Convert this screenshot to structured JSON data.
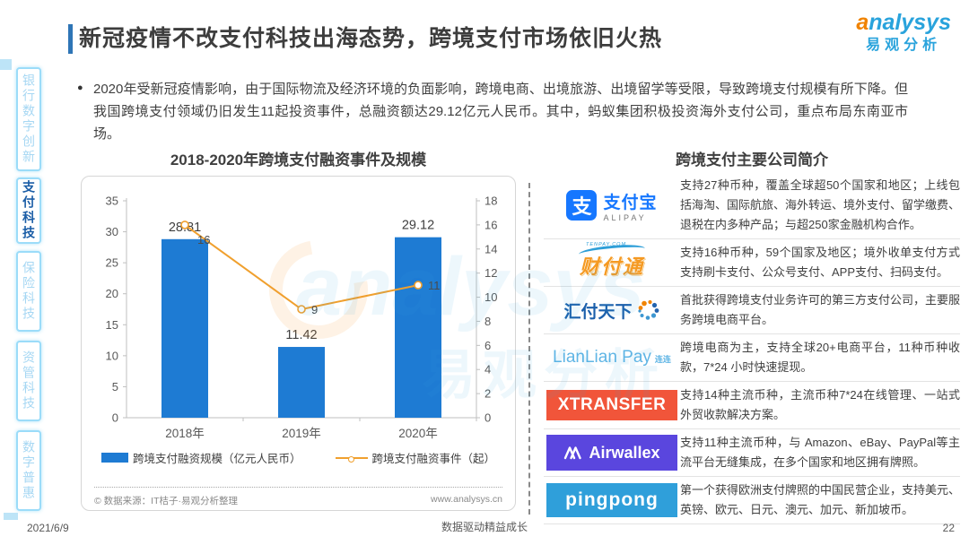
{
  "page": {
    "title": "新冠疫情不改支付科技出海态势，跨境支付市场依旧火热",
    "brand": {
      "en_a": "a",
      "en_rest": "nalysys",
      "cn": "易观分析"
    },
    "watermark": {
      "en": "analysys",
      "cn": "易观分析"
    },
    "footer": {
      "date": "2021/6/9",
      "slogan": "数据驱动精益成长",
      "page_number": "22"
    }
  },
  "sidebar": {
    "items": [
      {
        "label": "银行数字创新",
        "active": false
      },
      {
        "label": "支付科技",
        "active": true
      },
      {
        "label": "保险科技",
        "active": false
      },
      {
        "label": "资管科技",
        "active": false
      },
      {
        "label": "数字普惠",
        "active": false
      }
    ]
  },
  "bullet": {
    "marker": "●",
    "text": "2020年受新冠疫情影响，由于国际物流及经济环境的负面影响，跨境电商、出境旅游、出境留学等受限，导致跨境支付规模有所下降。但我国跨境支付领域仍旧发生11起投资事件，总融资额达29.12亿元人民币。其中，蚂蚁集团积极投资海外支付公司，重点布局东南亚市场。"
  },
  "chart_data": {
    "type": "bar",
    "title": "2018-2020年跨境支付融资事件及规模",
    "categories": [
      "2018年",
      "2019年",
      "2020年"
    ],
    "series": [
      {
        "name": "跨境支付融资规模（亿元人民币）",
        "type": "bar",
        "values": [
          28.81,
          11.42,
          29.12
        ]
      },
      {
        "name": "跨境支付融资事件（起）",
        "type": "line",
        "values": [
          16,
          9,
          11
        ]
      }
    ],
    "left_axis": {
      "min": 0,
      "max": 35,
      "step": 5
    },
    "right_axis": {
      "min": 0,
      "max": 18,
      "step": 2
    },
    "grid": false,
    "legend_position": "bottom",
    "source_note": "© 数据来源：IT桔子·易观分析整理",
    "website": "www.analysys.cn"
  },
  "colors": {
    "bar": "#1E7BD3",
    "line": "#F0A02E",
    "accent": "#2E75B6",
    "brand_blue": "#29A3DC",
    "brand_orange": "#F08300",
    "axis_text": "#595959",
    "label_text": "#3F3F3F"
  },
  "companies": {
    "title": "跨境支付主要公司简介",
    "rows": [
      {
        "name": "支付宝",
        "logo_glyph": "支",
        "logo_cn": "支付宝",
        "logo_en": "ALIPAY",
        "desc": "支持27种币种，覆盖全球超50个国家和地区；上线包括海淘、国际航旅、海外转运、境外支付、留学缴费、退税在内多种产品；与超250家金融机构合作。"
      },
      {
        "name": "财付通",
        "logo_top": "TENPAY.COM",
        "logo_text": "财付通",
        "desc": "支持16种币种，59个国家及地区；境外收单支付方式支持刷卡支付、公众号支付、APP支付、扫码支付。"
      },
      {
        "name": "汇付天下",
        "logo_text": "汇付天下",
        "desc": "首批获得跨境支付业务许可的第三方支付公司，主要服务跨境电商平台。"
      },
      {
        "name": "连连支付",
        "logo_text": "LianLian Pay",
        "logo_cn": "连连",
        "desc": "跨境电商为主，支持全球20+电商平台，11种币种收款，7*24 小时快速提现。"
      },
      {
        "name": "XTransfer",
        "logo_text": "XTRANSFER",
        "desc": "支持14种主流币种，主流币种7*24在线管理、一站式外贸收款解决方案。"
      },
      {
        "name": "Airwallex",
        "logo_text": "Airwallex",
        "desc": "支持11种主流币种，与 Amazon、eBay、PayPal等主流平台无缝集成，在多个国家和地区拥有牌照。"
      },
      {
        "name": "PingPong",
        "logo_text": "pingpong",
        "desc": "第一个获得欧洲支付牌照的中国民营企业，支持美元、英镑、欧元、日元、澳元、加元、新加坡币。"
      }
    ]
  }
}
